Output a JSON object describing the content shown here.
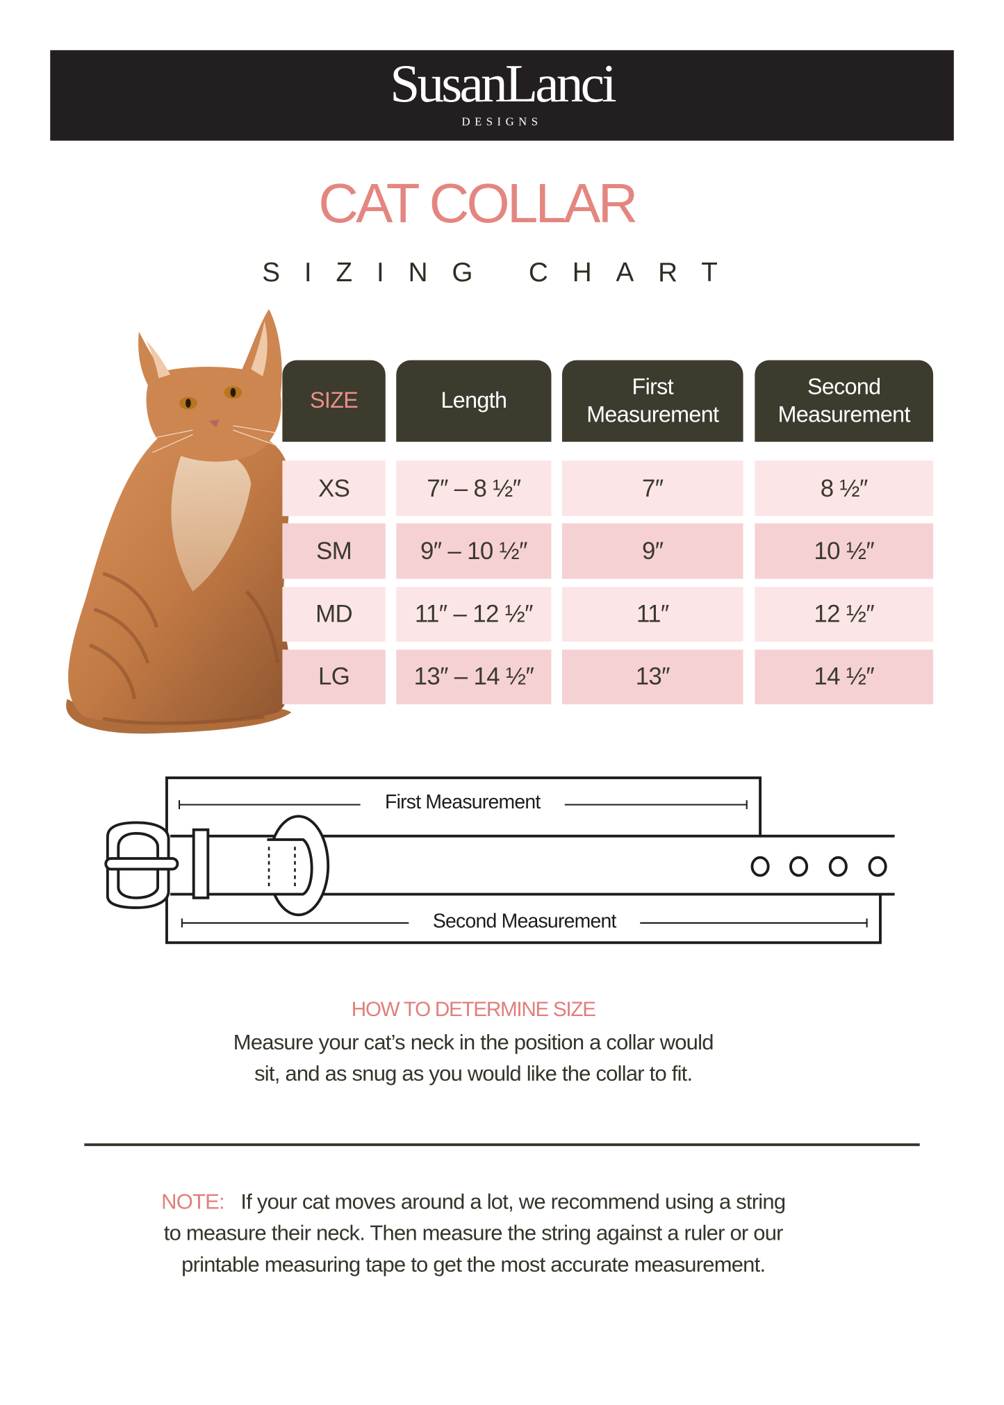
{
  "brand": {
    "logo_text": "SusanLanci",
    "logo_sub": "DESIGNS"
  },
  "title": "CAT COLLAR",
  "subtitle": "SIZING CHART",
  "table": {
    "headers": [
      {
        "line1": "SIZE",
        "line2": ""
      },
      {
        "line1": "Length",
        "line2": ""
      },
      {
        "line1": "First",
        "line2": "Measurement"
      },
      {
        "line1": "Second",
        "line2": "Measurement"
      }
    ],
    "rows": [
      {
        "size": "XS",
        "length": "7″ – 8 ½″",
        "first": "7″",
        "second": "8 ½″"
      },
      {
        "size": "SM",
        "length": "9″ – 10 ½″",
        "first": "9″",
        "second": "10 ½″"
      },
      {
        "size": "MD",
        "length": "11″ – 12 ½″",
        "first": "11″",
        "second": "12 ½″"
      },
      {
        "size": "LG",
        "length": "13″ – 14 ½″",
        "first": "13″",
        "second": "14 ½″"
      }
    ]
  },
  "diagram": {
    "first_label": "First Measurement",
    "second_label": "Second Measurement"
  },
  "howto": {
    "heading": "HOW TO DETERMINE SIZE",
    "line1": "Measure your cat’s neck in the position a collar would",
    "line2": "sit, and as snug as you would  like the collar to fit."
  },
  "note": {
    "label": "NOTE:",
    "line1": "If your cat moves around a lot, we recommend using a string",
    "line2": "to measure their neck. Then measure the string against a ruler or our",
    "line3": "printable measuring tape to get the most accurate measurement."
  },
  "colors": {
    "header_bg": "#231f20",
    "accent_pink": "#e48680",
    "table_header": "#3c3b2e",
    "row_light": "#fbe5e7",
    "row_dark": "#f6d1d4"
  }
}
